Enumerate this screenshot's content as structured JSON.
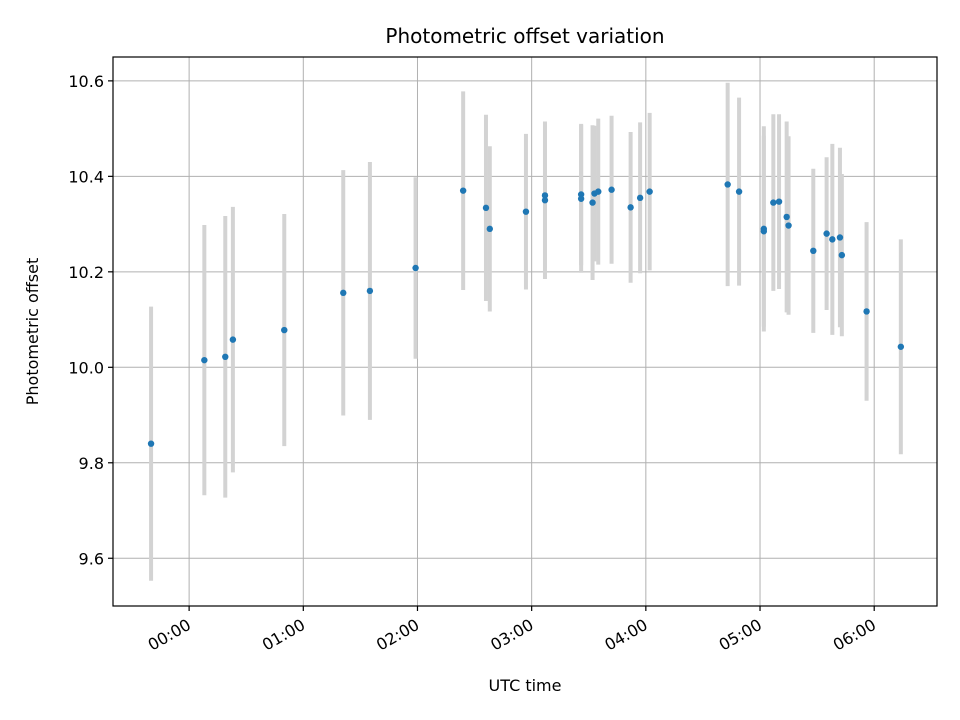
{
  "chart_data": {
    "type": "scatter",
    "title": "Photometric offset variation",
    "xlabel": "UTC time",
    "ylabel": "Photometric offset",
    "x_tick_labels": [
      "00:00",
      "01:00",
      "02:00",
      "03:00",
      "04:00",
      "05:00",
      "06:00"
    ],
    "x_tick_hours": [
      0,
      1,
      2,
      3,
      4,
      5,
      6
    ],
    "y_ticks": [
      9.6,
      9.8,
      10.0,
      10.2,
      10.4,
      10.6
    ],
    "y_tick_labels": [
      "9.6",
      "9.8",
      "10.0",
      "10.2",
      "10.4",
      "10.6"
    ],
    "xlim": [
      "-0:40",
      "6:33"
    ],
    "ylim": [
      9.5,
      10.65
    ],
    "grid": true,
    "point_color": "#1f77b4",
    "errorbar_color": "#d3d3d3",
    "points": [
      {
        "x": "-0:20",
        "y": 9.84,
        "err": 0.287
      },
      {
        "x": "0:08",
        "y": 10.015,
        "err": 0.283
      },
      {
        "x": "0:19",
        "y": 10.022,
        "err": 0.295
      },
      {
        "x": "0:23",
        "y": 10.058,
        "err": 0.278
      },
      {
        "x": "0:50",
        "y": 10.078,
        "err": 0.243
      },
      {
        "x": "1:21",
        "y": 10.156,
        "err": 0.257
      },
      {
        "x": "1:35",
        "y": 10.16,
        "err": 0.27
      },
      {
        "x": "1:59",
        "y": 10.208,
        "err": 0.19
      },
      {
        "x": "2:24",
        "y": 10.37,
        "err": 0.208
      },
      {
        "x": "2:36",
        "y": 10.334,
        "err": 0.195
      },
      {
        "x": "2:38",
        "y": 10.29,
        "err": 0.173
      },
      {
        "x": "2:57",
        "y": 10.326,
        "err": 0.163
      },
      {
        "x": "3:07",
        "y": 10.36,
        "err": 0.152
      },
      {
        "x": "3:07",
        "y": 10.35,
        "err": 0.165
      },
      {
        "x": "3:26",
        "y": 10.362,
        "err": 0.148
      },
      {
        "x": "3:26",
        "y": 10.353,
        "err": 0.155
      },
      {
        "x": "3:32",
        "y": 10.345,
        "err": 0.162
      },
      {
        "x": "3:33",
        "y": 10.364,
        "err": 0.142
      },
      {
        "x": "3:35",
        "y": 10.368,
        "err": 0.153
      },
      {
        "x": "3:42",
        "y": 10.372,
        "err": 0.155
      },
      {
        "x": "3:52",
        "y": 10.335,
        "err": 0.158
      },
      {
        "x": "3:57",
        "y": 10.355,
        "err": 0.158
      },
      {
        "x": "4:02",
        "y": 10.368,
        "err": 0.165
      },
      {
        "x": "4:43",
        "y": 10.383,
        "err": 0.213
      },
      {
        "x": "4:49",
        "y": 10.368,
        "err": 0.197
      },
      {
        "x": "5:02",
        "y": 10.29,
        "err": 0.215
      },
      {
        "x": "5:02",
        "y": 10.285,
        "err": 0.2
      },
      {
        "x": "5:07",
        "y": 10.345,
        "err": 0.185
      },
      {
        "x": "5:10",
        "y": 10.347,
        "err": 0.183
      },
      {
        "x": "5:14",
        "y": 10.315,
        "err": 0.2
      },
      {
        "x": "5:15",
        "y": 10.297,
        "err": 0.187
      },
      {
        "x": "5:28",
        "y": 10.244,
        "err": 0.172
      },
      {
        "x": "5:35",
        "y": 10.28,
        "err": 0.16
      },
      {
        "x": "5:38",
        "y": 10.268,
        "err": 0.2
      },
      {
        "x": "5:42",
        "y": 10.272,
        "err": 0.188
      },
      {
        "x": "5:43",
        "y": 10.235,
        "err": 0.17
      },
      {
        "x": "5:56",
        "y": 10.117,
        "err": 0.187
      },
      {
        "x": "6:14",
        "y": 10.043,
        "err": 0.225
      }
    ]
  }
}
